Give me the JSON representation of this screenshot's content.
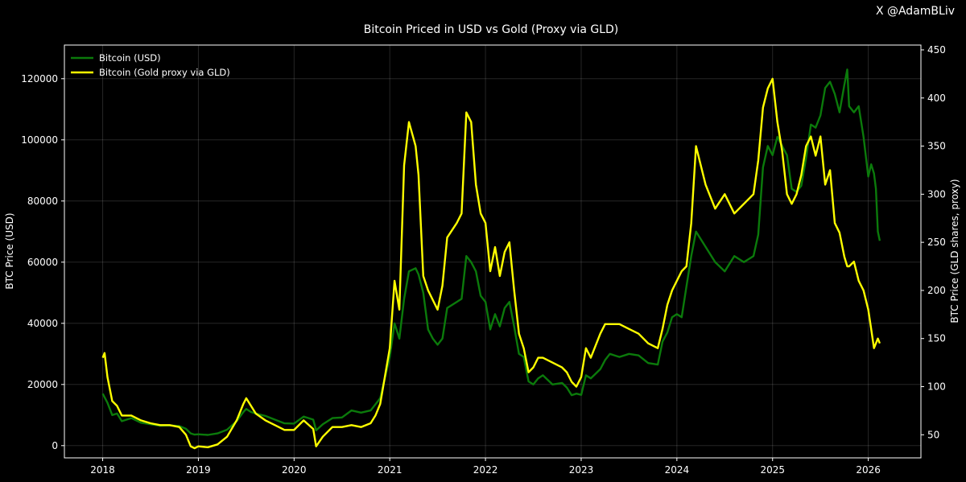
{
  "watermark": "X @AdamBLiv",
  "chart_data": {
    "type": "line",
    "title": "Bitcoin Priced in USD vs Gold (Proxy via GLD)",
    "x_ticks": [
      "2018",
      "2019",
      "2020",
      "2021",
      "2022",
      "2023",
      "2024",
      "2025",
      "2026"
    ],
    "x_range": [
      2017.6,
      2026.55
    ],
    "y_left": {
      "label": "BTC Price (USD)",
      "range": [
        -4000,
        131000
      ],
      "ticks": [
        0,
        20000,
        40000,
        60000,
        80000,
        100000,
        120000
      ]
    },
    "y_right": {
      "label": "BTC Price (GLD shares, proxy)",
      "range": [
        26,
        455
      ],
      "ticks": [
        50,
        100,
        150,
        200,
        250,
        300,
        350,
        400,
        450
      ]
    },
    "grid": true,
    "legend_position": "top-left",
    "series": [
      {
        "name": "Bitcoin (USD)",
        "color": "#0b7a0b",
        "axis": "left",
        "x": [
          2018.0,
          2018.05,
          2018.1,
          2018.15,
          2018.2,
          2018.3,
          2018.4,
          2018.5,
          2018.6,
          2018.7,
          2018.8,
          2018.87,
          2018.92,
          2018.96,
          2019.0,
          2019.1,
          2019.2,
          2019.3,
          2019.4,
          2019.47,
          2019.5,
          2019.55,
          2019.6,
          2019.7,
          2019.8,
          2019.9,
          2020.0,
          2020.1,
          2020.2,
          2020.23,
          2020.3,
          2020.4,
          2020.5,
          2020.6,
          2020.7,
          2020.8,
          2020.85,
          2020.9,
          2021.0,
          2021.05,
          2021.1,
          2021.15,
          2021.2,
          2021.27,
          2021.3,
          2021.35,
          2021.4,
          2021.45,
          2021.5,
          2021.55,
          2021.6,
          2021.7,
          2021.75,
          2021.8,
          2021.85,
          2021.9,
          2021.95,
          2022.0,
          2022.05,
          2022.1,
          2022.15,
          2022.2,
          2022.25,
          2022.3,
          2022.35,
          2022.4,
          2022.45,
          2022.5,
          2022.55,
          2022.6,
          2022.7,
          2022.8,
          2022.85,
          2022.9,
          2022.95,
          2023.0,
          2023.05,
          2023.1,
          2023.2,
          2023.25,
          2023.3,
          2023.4,
          2023.5,
          2023.6,
          2023.7,
          2023.8,
          2023.85,
          2023.9,
          2023.95,
          2024.0,
          2024.05,
          2024.1,
          2024.15,
          2024.2,
          2024.3,
          2024.4,
          2024.5,
          2024.6,
          2024.7,
          2024.8,
          2024.85,
          2024.9,
          2024.95,
          2025.0,
          2025.05,
          2025.1,
          2025.15,
          2025.2,
          2025.25,
          2025.3,
          2025.35,
          2025.4,
          2025.45,
          2025.5,
          2025.55,
          2025.6,
          2025.65,
          2025.7,
          2025.75,
          2025.78,
          2025.8,
          2025.85,
          2025.9,
          2025.95,
          2026.0,
          2026.03,
          2026.06,
          2026.08,
          2026.1,
          2026.12
        ],
        "y": [
          17000,
          14000,
          10000,
          10500,
          8000,
          9000,
          7500,
          7000,
          6500,
          6600,
          6400,
          5500,
          4000,
          3600,
          3700,
          3500,
          4000,
          5200,
          8000,
          11000,
          12000,
          11000,
          10500,
          9700,
          8500,
          7300,
          7200,
          9500,
          8500,
          5000,
          7000,
          9000,
          9200,
          11500,
          10800,
          11500,
          13500,
          15500,
          29000,
          40000,
          35000,
          48000,
          57000,
          58000,
          56000,
          50000,
          38000,
          35000,
          33000,
          35000,
          45000,
          47000,
          48000,
          62000,
          60000,
          57000,
          49000,
          47000,
          38000,
          43000,
          39000,
          45000,
          47000,
          39000,
          30000,
          29000,
          21000,
          20000,
          22000,
          23000,
          20000,
          20500,
          19000,
          16500,
          17000,
          16600,
          23000,
          22000,
          25000,
          28000,
          30000,
          29000,
          30000,
          29500,
          27000,
          26500,
          34000,
          37000,
          42000,
          43000,
          42000,
          52000,
          62000,
          70000,
          65000,
          60000,
          57000,
          62000,
          60000,
          62000,
          69000,
          91000,
          98000,
          95000,
          101000,
          98000,
          95000,
          84000,
          83000,
          85000,
          94000,
          105000,
          104000,
          108000,
          117000,
          119000,
          115000,
          109000,
          118000,
          123000,
          111000,
          109000,
          111000,
          101000,
          88000,
          92000,
          89000,
          84000,
          70000,
          67000
        ],
        "legend_label": "Bitcoin (USD)"
      },
      {
        "name": "Bitcoin (Gold proxy via GLD)",
        "color": "#ffff00",
        "axis": "right",
        "x": [
          2018.0,
          2018.02,
          2018.05,
          2018.1,
          2018.15,
          2018.2,
          2018.3,
          2018.4,
          2018.5,
          2018.6,
          2018.7,
          2018.8,
          2018.87,
          2018.92,
          2018.96,
          2019.0,
          2019.1,
          2019.2,
          2019.3,
          2019.4,
          2019.47,
          2019.5,
          2019.55,
          2019.6,
          2019.7,
          2019.8,
          2019.9,
          2020.0,
          2020.1,
          2020.2,
          2020.23,
          2020.3,
          2020.4,
          2020.5,
          2020.6,
          2020.7,
          2020.8,
          2020.85,
          2020.9,
          2021.0,
          2021.05,
          2021.1,
          2021.15,
          2021.2,
          2021.27,
          2021.3,
          2021.35,
          2021.4,
          2021.45,
          2021.5,
          2021.55,
          2021.6,
          2021.7,
          2021.75,
          2021.8,
          2021.85,
          2021.9,
          2021.95,
          2022.0,
          2022.05,
          2022.1,
          2022.15,
          2022.2,
          2022.25,
          2022.3,
          2022.35,
          2022.4,
          2022.45,
          2022.5,
          2022.55,
          2022.6,
          2022.7,
          2022.8,
          2022.85,
          2022.9,
          2022.95,
          2023.0,
          2023.05,
          2023.1,
          2023.2,
          2023.25,
          2023.3,
          2023.4,
          2023.5,
          2023.6,
          2023.7,
          2023.8,
          2023.85,
          2023.9,
          2023.95,
          2024.0,
          2024.05,
          2024.1,
          2024.15,
          2024.2,
          2024.3,
          2024.4,
          2024.5,
          2024.6,
          2024.7,
          2024.8,
          2024.85,
          2024.9,
          2024.95,
          2025.0,
          2025.05,
          2025.1,
          2025.15,
          2025.2,
          2025.25,
          2025.3,
          2025.35,
          2025.4,
          2025.45,
          2025.5,
          2025.55,
          2025.6,
          2025.65,
          2025.7,
          2025.75,
          2025.78,
          2025.8,
          2025.85,
          2025.9,
          2025.95,
          2026.0,
          2026.03,
          2026.06,
          2026.08,
          2026.1,
          2026.12
        ],
        "y": [
          130,
          135,
          110,
          85,
          80,
          70,
          70,
          65,
          62,
          60,
          60,
          58,
          50,
          38,
          36,
          38,
          37,
          40,
          48,
          65,
          82,
          88,
          80,
          72,
          65,
          60,
          55,
          55,
          65,
          56,
          38,
          48,
          58,
          58,
          60,
          58,
          62,
          70,
          82,
          140,
          210,
          180,
          330,
          375,
          350,
          320,
          215,
          200,
          190,
          180,
          205,
          255,
          270,
          280,
          385,
          375,
          310,
          280,
          270,
          220,
          245,
          215,
          240,
          250,
          200,
          155,
          140,
          115,
          120,
          130,
          130,
          125,
          120,
          115,
          105,
          100,
          110,
          140,
          130,
          155,
          165,
          165,
          165,
          160,
          155,
          145,
          140,
          160,
          185,
          200,
          210,
          220,
          225,
          270,
          350,
          310,
          285,
          300,
          280,
          290,
          300,
          335,
          390,
          410,
          420,
          375,
          345,
          300,
          290,
          300,
          320,
          350,
          360,
          340,
          360,
          310,
          325,
          270,
          260,
          235,
          225,
          225,
          230,
          210,
          200,
          180,
          160,
          140,
          145,
          150,
          145
        ],
        "legend_label": "Bitcoin (Gold proxy via GLD)"
      }
    ]
  }
}
